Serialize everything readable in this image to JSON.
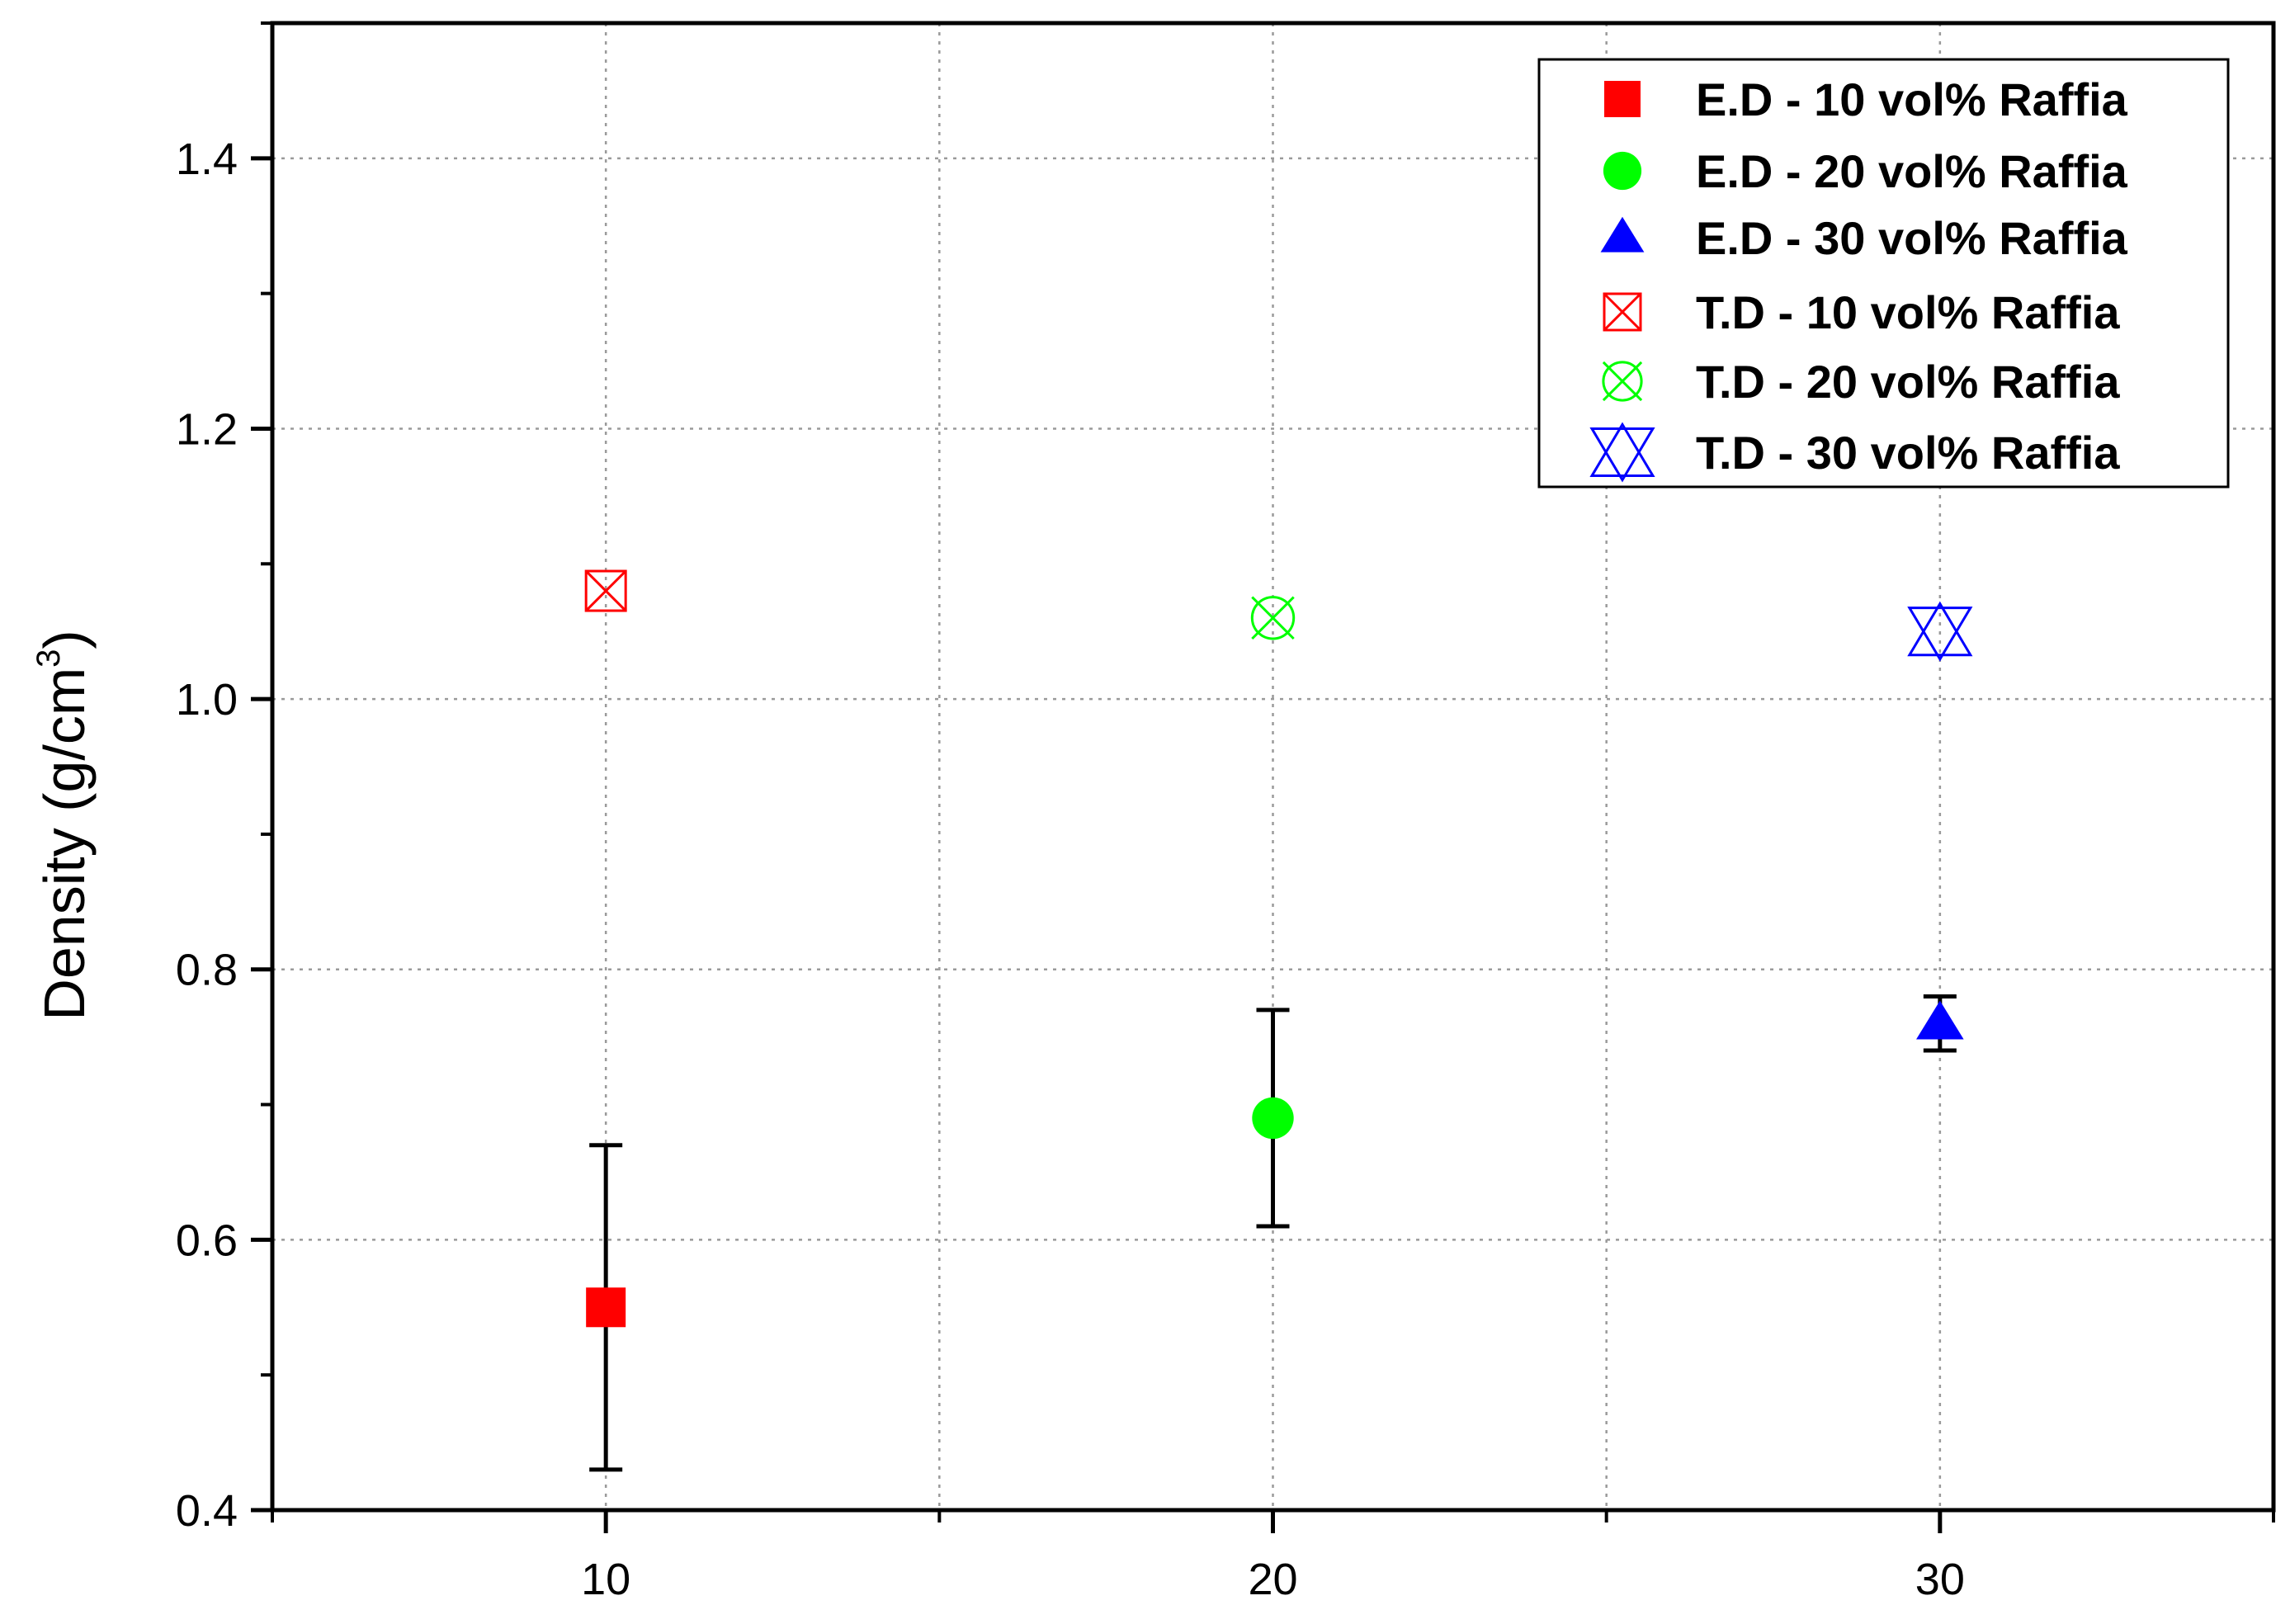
{
  "chart_data": {
    "type": "scatter",
    "title": "",
    "xlabel": "",
    "ylabel_main": "Density (g/cm",
    "ylabel_sup": "3",
    "ylabel_close": ")",
    "xlim": [
      5,
      35
    ],
    "ylim": [
      0.4,
      1.5
    ],
    "x_ticks": [
      10,
      20,
      30
    ],
    "x_tick_labels": [
      "10",
      "20",
      "30"
    ],
    "x_minor_ticks": [
      5,
      15,
      25,
      35
    ],
    "y_ticks": [
      0.4,
      0.6,
      0.8,
      1.0,
      1.2,
      1.4
    ],
    "y_tick_labels": [
      "0.4",
      "0.6",
      "0.8",
      "1.0",
      "1.2",
      "1.4"
    ],
    "y_minor_ticks": [
      0.5,
      0.7,
      0.9,
      1.1,
      1.3,
      1.5
    ],
    "grid": true,
    "legend_position": "top-right",
    "series": [
      {
        "name": "E.D - 10 vol% Raffia",
        "marker": "square-filled",
        "color": "#ff0000",
        "x": 10,
        "y": 0.55,
        "err_low": 0.43,
        "err_high": 0.67
      },
      {
        "name": "E.D - 20 vol% Raffia",
        "marker": "circle-filled",
        "color": "#00ff00",
        "x": 20,
        "y": 0.69,
        "err_low": 0.61,
        "err_high": 0.77
      },
      {
        "name": "E.D - 30 vol% Raffia",
        "marker": "triangle-filled",
        "color": "#0000ff",
        "x": 30,
        "y": 0.76,
        "err_low": 0.74,
        "err_high": 0.78
      },
      {
        "name": "T.D - 10 vol% Raffia",
        "marker": "square-x",
        "color": "#ff0000",
        "x": 10,
        "y": 1.08
      },
      {
        "name": "T.D - 20 vol% Raffia",
        "marker": "circle-x",
        "color": "#00ff00",
        "x": 20,
        "y": 1.06
      },
      {
        "name": "T.D - 30 vol% Raffia",
        "marker": "triangle-x",
        "color": "#0000ff",
        "x": 30,
        "y": 1.05
      }
    ]
  }
}
